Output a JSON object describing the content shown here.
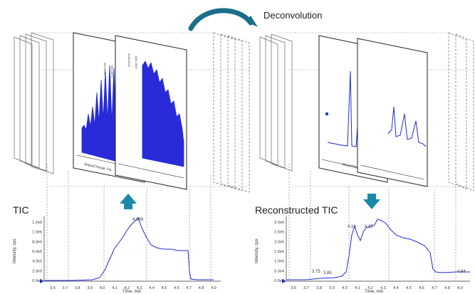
{
  "process": {
    "label": "Deconvolution"
  },
  "left_panel": {
    "title": "TIC",
    "y_axis_label": "Intensity, cps",
    "x_axis_label": "Time, min",
    "y_ticks": [
      "0.0e0",
      "2.0e5",
      "4.0e5",
      "6.0e5",
      "8.0e5",
      "1.0e6",
      "1.2e6"
    ],
    "x_ticks": [
      "3.6",
      "3.7",
      "3.8",
      "3.9",
      "4.0",
      "4.1",
      "4.2",
      "4.3",
      "4.4",
      "4.5",
      "4.6",
      "4.7",
      "4.8",
      "4.9"
    ],
    "peak_labels": [
      "4.389"
    ]
  },
  "right_panel": {
    "title": "Reconstructed TIC",
    "y_axis_label": "Intensity, cps",
    "x_axis_label": "Time, min",
    "y_ticks": [
      "0.0e0",
      "5.0e4",
      "1.0e5",
      "1.5e5",
      "2.0e5",
      "2.5e5",
      "3.0e5"
    ],
    "x_ticks": [
      "3.6",
      "3.7",
      "3.8",
      "3.9",
      "4.0",
      "4.1",
      "4.2",
      "4.3",
      "4.4",
      "4.5",
      "4.6",
      "4.7",
      "4.8",
      "4.9"
    ],
    "peak_labels": [
      "3.75",
      "3.85",
      "4.10",
      "4.35",
      "4.94"
    ]
  },
  "spectra_axis_label": "Mass/Charge, Da",
  "colors": {
    "trace": "#1f2bd6",
    "arrow_teal": "#1a8aa8",
    "frame": "#333333"
  }
}
